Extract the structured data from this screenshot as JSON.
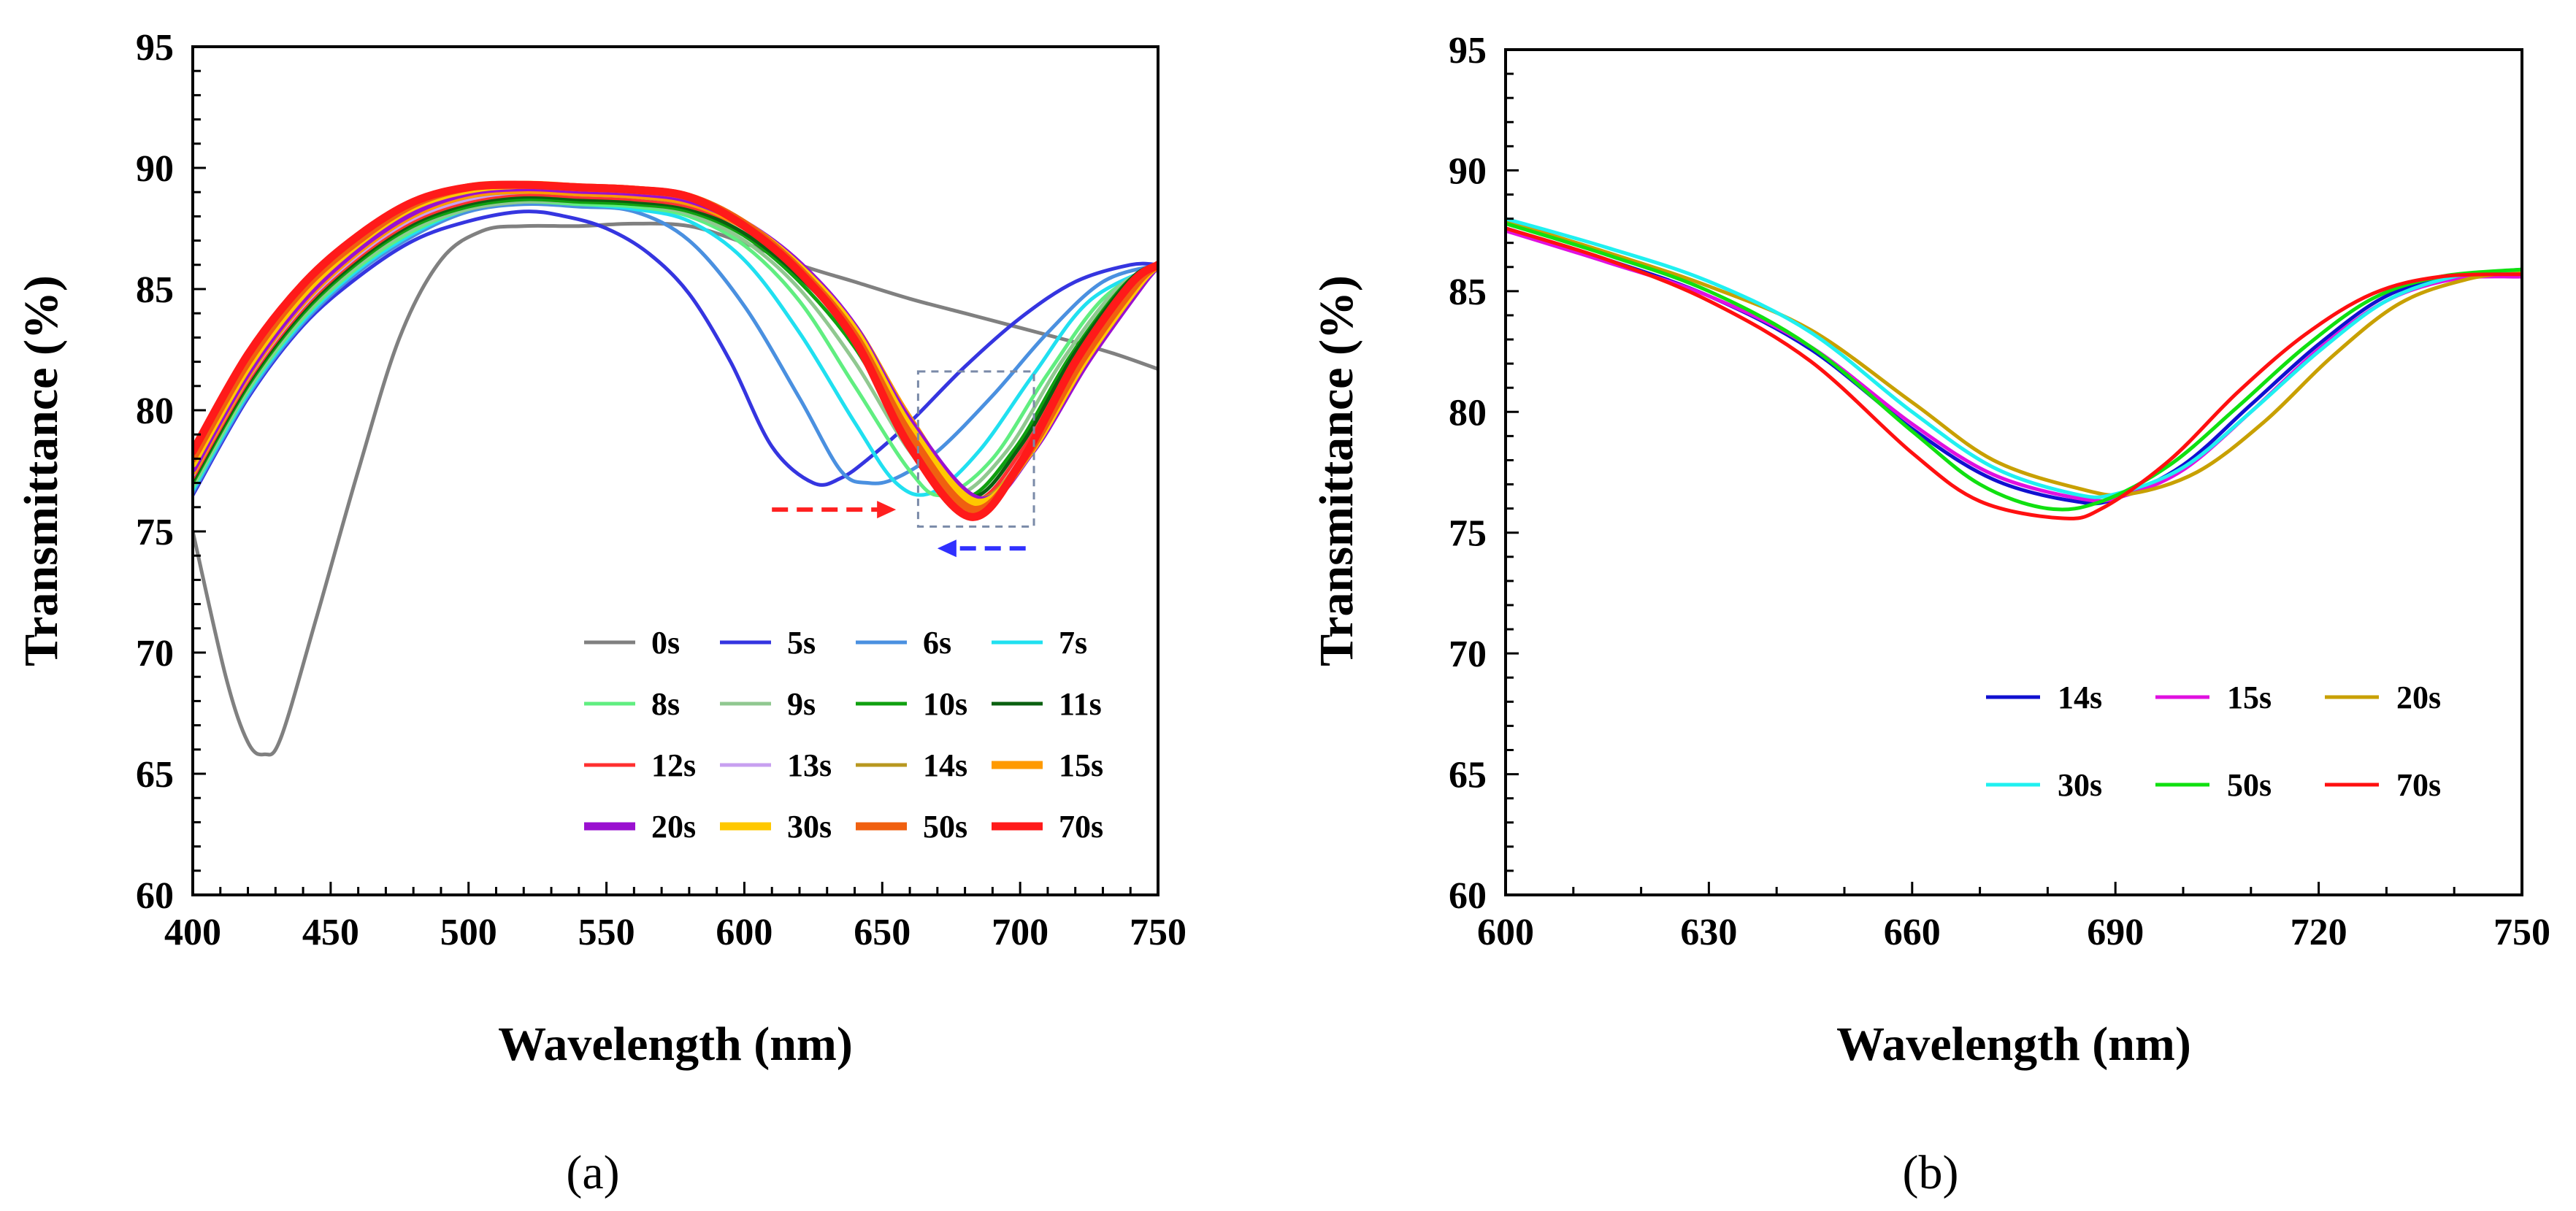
{
  "chart_data": [
    {
      "type": "line",
      "panel_label": "(a)",
      "xlabel": "Wavelength  (nm)",
      "ylabel": "Transmittance  (%)",
      "xlim": [
        400,
        750
      ],
      "ylim": [
        60,
        95
      ],
      "xticks": [
        400,
        450,
        500,
        550,
        600,
        650,
        700,
        750
      ],
      "yticks": [
        60,
        65,
        70,
        75,
        80,
        85,
        90,
        95
      ],
      "legend_position": "bottom-right",
      "legend_columns": 4,
      "annotations": [
        {
          "kind": "arrow",
          "direction": "right",
          "color": "#ff2020",
          "from_x": 610,
          "to_x": 655,
          "y": 75.9
        },
        {
          "kind": "arrow",
          "direction": "left",
          "color": "#3030ff",
          "from_x": 702,
          "to_x": 670,
          "y": 74.3
        },
        {
          "kind": "dashed-box",
          "color": "#7a8aa8",
          "x_range": [
            663,
            705
          ],
          "y_range": [
            75.2,
            81.6
          ]
        }
      ],
      "series": [
        {
          "name": "0s",
          "color": "#808080",
          "width": 5,
          "x": [
            400,
            412,
            420,
            426,
            432,
            445,
            460,
            475,
            490,
            505,
            520,
            540,
            560,
            580,
            600,
            620,
            640,
            660,
            680,
            700,
            720,
            735,
            750
          ],
          "y": [
            75,
            69,
            66.3,
            65.8,
            66.5,
            71.5,
            77.5,
            83,
            86.2,
            87.4,
            87.6,
            87.6,
            87.7,
            87.6,
            86.9,
            86,
            85.3,
            84.6,
            84,
            83.4,
            82.8,
            82.3,
            81.7
          ]
        },
        {
          "name": "5s",
          "color": "#3535e0",
          "width": 5,
          "x": [
            400,
            420,
            440,
            460,
            480,
            500,
            520,
            535,
            550,
            565,
            580,
            595,
            610,
            625,
            635,
            645,
            660,
            680,
            700,
            720,
            740,
            750
          ],
          "y": [
            76.5,
            80.5,
            83.5,
            85.5,
            87,
            87.8,
            88.2,
            88,
            87.5,
            86.5,
            84.8,
            82,
            78.5,
            77,
            77.2,
            78,
            79.5,
            81.8,
            83.8,
            85.3,
            86,
            86
          ]
        },
        {
          "name": "6s",
          "color": "#4a90e0",
          "width": 5,
          "x": [
            400,
            420,
            440,
            460,
            480,
            500,
            520,
            540,
            560,
            580,
            600,
            620,
            635,
            645,
            655,
            670,
            690,
            710,
            730,
            750
          ],
          "y": [
            76.6,
            80.6,
            83.6,
            85.7,
            87.2,
            88.2,
            88.5,
            88.4,
            88.2,
            87,
            84.3,
            80.5,
            77.5,
            77,
            77.2,
            78.3,
            80.6,
            83.2,
            85.3,
            86
          ]
        },
        {
          "name": "7s",
          "color": "#20e0f0",
          "width": 5,
          "x": [
            400,
            420,
            440,
            460,
            480,
            500,
            520,
            540,
            560,
            580,
            600,
            620,
            640,
            655,
            668,
            685,
            705,
            725,
            750
          ],
          "y": [
            76.7,
            80.7,
            83.7,
            85.8,
            87.3,
            88.3,
            88.6,
            88.5,
            88.3,
            87.8,
            86.2,
            83.2,
            79.5,
            77,
            76.6,
            78.3,
            81.5,
            84.5,
            86
          ]
        },
        {
          "name": "8s",
          "color": "#60ee80",
          "width": 5,
          "x": [
            400,
            420,
            440,
            460,
            480,
            500,
            520,
            540,
            560,
            580,
            600,
            620,
            640,
            660,
            672,
            690,
            710,
            730,
            750
          ],
          "y": [
            76.8,
            80.8,
            83.8,
            85.9,
            87.4,
            88.3,
            88.6,
            88.5,
            88.4,
            88,
            86.8,
            84.5,
            81,
            77.5,
            76.5,
            78,
            81.5,
            84.6,
            86
          ]
        },
        {
          "name": "9s",
          "color": "#90c890",
          "width": 5,
          "x": [
            400,
            420,
            440,
            460,
            480,
            500,
            520,
            540,
            560,
            580,
            600,
            620,
            640,
            660,
            676,
            695,
            715,
            735,
            750
          ],
          "y": [
            76.9,
            80.9,
            83.9,
            86,
            87.5,
            88.3,
            88.6,
            88.6,
            88.5,
            88.1,
            87,
            85,
            82,
            78.3,
            76.5,
            78.3,
            82,
            85,
            86
          ]
        },
        {
          "name": "10s",
          "color": "#10a010",
          "width": 5,
          "x": [
            400,
            420,
            440,
            460,
            480,
            500,
            520,
            540,
            560,
            580,
            600,
            620,
            640,
            660,
            679,
            698,
            718,
            738,
            750
          ],
          "y": [
            77,
            81,
            84,
            86.1,
            87.6,
            88.4,
            88.7,
            88.6,
            88.5,
            88.2,
            87.2,
            85.3,
            82.6,
            78.8,
            76.4,
            78.4,
            82.2,
            85.2,
            86
          ]
        },
        {
          "name": "11s",
          "color": "#0a6010",
          "width": 5,
          "x": [
            400,
            420,
            440,
            460,
            480,
            500,
            520,
            540,
            560,
            580,
            600,
            620,
            640,
            660,
            681,
            700,
            720,
            740,
            750
          ],
          "y": [
            77.1,
            81.1,
            84.1,
            86.2,
            87.7,
            88.5,
            88.8,
            88.7,
            88.6,
            88.3,
            87.3,
            85.5,
            83,
            79.2,
            76.4,
            78.5,
            82.4,
            85.4,
            86
          ]
        },
        {
          "name": "12s",
          "color": "#ff3030",
          "width": 5,
          "x": [
            400,
            420,
            440,
            460,
            480,
            500,
            520,
            540,
            560,
            580,
            600,
            620,
            640,
            660,
            682,
            701,
            721,
            741,
            750
          ],
          "y": [
            77.2,
            81.2,
            84.2,
            86.3,
            87.8,
            88.6,
            88.9,
            88.8,
            88.7,
            88.4,
            87.5,
            85.7,
            83.2,
            79.4,
            76.3,
            78.4,
            82.3,
            85.3,
            86
          ]
        },
        {
          "name": "13s",
          "color": "#c8a0f0",
          "width": 5,
          "x": [
            400,
            420,
            440,
            460,
            480,
            500,
            520,
            540,
            560,
            580,
            600,
            620,
            640,
            660,
            683,
            702,
            722,
            742,
            750
          ],
          "y": [
            77.3,
            81.3,
            84.3,
            86.4,
            87.9,
            88.7,
            89,
            88.9,
            88.8,
            88.5,
            87.6,
            85.8,
            83.3,
            79.5,
            76.2,
            78.3,
            82.2,
            85.3,
            86
          ]
        },
        {
          "name": "14s",
          "color": "#b89820",
          "width": 5,
          "x": [
            400,
            420,
            440,
            460,
            480,
            500,
            520,
            540,
            560,
            580,
            600,
            620,
            640,
            660,
            684,
            703,
            723,
            743,
            750
          ],
          "y": [
            77.4,
            81.4,
            84.4,
            86.5,
            88,
            88.8,
            89,
            88.9,
            88.8,
            88.5,
            87.6,
            85.9,
            83.4,
            79.6,
            76.4,
            78.4,
            82.1,
            85.2,
            86
          ]
        },
        {
          "name": "15s",
          "color": "#ff9a00",
          "width": 11,
          "x": [
            400,
            420,
            440,
            460,
            480,
            500,
            520,
            540,
            560,
            580,
            600,
            620,
            640,
            660,
            684,
            703,
            723,
            743,
            750
          ],
          "y": [
            77.5,
            81.5,
            84.5,
            86.6,
            88.1,
            88.9,
            89.1,
            89,
            88.9,
            88.6,
            87.6,
            85.9,
            83.4,
            79.6,
            76.1,
            78.3,
            82.1,
            85.2,
            86
          ]
        },
        {
          "name": "20s",
          "color": "#9a10d0",
          "width": 11,
          "x": [
            400,
            420,
            440,
            460,
            480,
            500,
            520,
            540,
            560,
            580,
            600,
            620,
            640,
            660,
            685,
            704,
            724,
            744,
            750
          ],
          "y": [
            77.6,
            81.6,
            84.6,
            86.7,
            88.2,
            89,
            89.2,
            89.1,
            89,
            88.7,
            87.7,
            86,
            83.4,
            79.5,
            76.3,
            78.3,
            82,
            85.2,
            86
          ]
        },
        {
          "name": "30s",
          "color": "#ffc800",
          "width": 11,
          "x": [
            400,
            420,
            440,
            460,
            480,
            500,
            520,
            540,
            560,
            580,
            600,
            620,
            640,
            660,
            684,
            703,
            723,
            743,
            750
          ],
          "y": [
            77.8,
            81.8,
            84.8,
            86.9,
            88.4,
            89.1,
            89.3,
            89.2,
            89.1,
            88.8,
            87.7,
            85.9,
            83.3,
            79.3,
            76.2,
            78.2,
            82,
            85.2,
            86
          ]
        },
        {
          "name": "50s",
          "color": "#f06010",
          "width": 11,
          "x": [
            400,
            420,
            440,
            460,
            480,
            500,
            520,
            540,
            560,
            580,
            600,
            620,
            640,
            660,
            683,
            702,
            722,
            742,
            750
          ],
          "y": [
            78,
            82,
            85,
            87,
            88.5,
            89.2,
            89.3,
            89.2,
            89.1,
            88.8,
            87.7,
            85.8,
            83.1,
            79,
            75.9,
            78.1,
            82,
            85.2,
            86
          ]
        },
        {
          "name": "70s",
          "color": "#ff1a1a",
          "width": 11,
          "x": [
            400,
            420,
            440,
            460,
            480,
            500,
            520,
            540,
            560,
            580,
            600,
            620,
            640,
            660,
            682,
            700,
            720,
            740,
            750
          ],
          "y": [
            78.3,
            82.3,
            85.2,
            87.2,
            88.6,
            89.2,
            89.3,
            89.2,
            89.1,
            88.8,
            87.6,
            85.7,
            82.9,
            78.5,
            75.6,
            77.8,
            82,
            85.2,
            86
          ]
        }
      ]
    },
    {
      "type": "line",
      "panel_label": "(b)",
      "xlabel": "Wavelength  (nm)",
      "ylabel": "Transmittance  (%)",
      "xlim": [
        600,
        750
      ],
      "ylim": [
        60,
        95
      ],
      "xticks": [
        600,
        630,
        660,
        690,
        720,
        750
      ],
      "yticks": [
        60,
        65,
        70,
        75,
        80,
        85,
        90,
        95
      ],
      "legend_position": "center-right",
      "legend_columns": 3,
      "series": [
        {
          "name": "14s",
          "color": "#1010d0",
          "width": 5,
          "x": [
            600,
            615,
            630,
            645,
            660,
            672,
            684,
            690,
            700,
            710,
            720,
            730,
            740,
            750
          ],
          "y": [
            87.6,
            86.3,
            84.8,
            82.6,
            79.3,
            77.2,
            76.3,
            76.4,
            77.8,
            80.3,
            82.8,
            84.8,
            85.6,
            85.6
          ]
        },
        {
          "name": "15s",
          "color": "#e010e0",
          "width": 5,
          "x": [
            600,
            615,
            630,
            645,
            660,
            672,
            685,
            691,
            700,
            710,
            720,
            730,
            740,
            750
          ],
          "y": [
            87.5,
            86.2,
            84.8,
            82.7,
            79.5,
            77.4,
            76.4,
            76.5,
            77.6,
            80,
            82.6,
            84.6,
            85.5,
            85.6
          ]
        },
        {
          "name": "20s",
          "color": "#c8a000",
          "width": 5,
          "x": [
            600,
            615,
            630,
            645,
            660,
            672,
            685,
            692,
            702,
            712,
            722,
            732,
            742,
            750
          ],
          "y": [
            87.9,
            86.6,
            85.2,
            83.4,
            80.4,
            78,
            76.8,
            76.6,
            77.5,
            79.6,
            82.3,
            84.5,
            85.5,
            85.8
          ]
        },
        {
          "name": "30s",
          "color": "#20f0f0",
          "width": 5,
          "x": [
            600,
            615,
            630,
            645,
            660,
            672,
            684,
            690,
            700,
            710,
            720,
            730,
            740,
            750
          ],
          "y": [
            88,
            86.8,
            85.4,
            83.3,
            80,
            77.7,
            76.6,
            76.6,
            77.7,
            80,
            82.5,
            84.6,
            85.6,
            85.9
          ]
        },
        {
          "name": "50s",
          "color": "#10e010",
          "width": 5,
          "x": [
            600,
            615,
            630,
            645,
            660,
            670,
            680,
            688,
            698,
            708,
            718,
            728,
            738,
            750
          ],
          "y": [
            87.8,
            86.5,
            85,
            82.7,
            79.2,
            77,
            76,
            76.3,
            77.8,
            80.2,
            82.7,
            84.7,
            85.6,
            85.9
          ]
        },
        {
          "name": "70s",
          "color": "#ff1010",
          "width": 5,
          "x": [
            600,
            615,
            630,
            645,
            660,
            670,
            682,
            688,
            698,
            708,
            718,
            728,
            738,
            750
          ],
          "y": [
            87.6,
            86.3,
            84.6,
            82.1,
            78.3,
            76.3,
            75.6,
            76,
            78,
            80.8,
            83.2,
            84.9,
            85.6,
            85.7
          ]
        }
      ]
    }
  ]
}
